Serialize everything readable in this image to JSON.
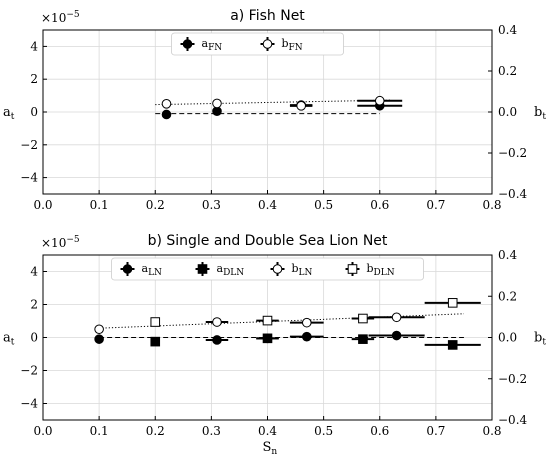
{
  "chart_data": [
    {
      "type": "scatter",
      "title": "a) Fish Net",
      "xlabel": "",
      "ylabel_left": "a",
      "ylabel_left_sub": "t",
      "ylabel_right": "b",
      "ylabel_right_sub": "t",
      "exponent_prefix": "×10",
      "exponent_power": "−5",
      "xlim": [
        0.0,
        0.8
      ],
      "ylim_left": [
        -5,
        5
      ],
      "ylim_right": [
        -0.4,
        0.4
      ],
      "xticks": [
        "0.0",
        "0.1",
        "0.2",
        "0.3",
        "0.4",
        "0.5",
        "0.6",
        "0.7",
        "0.8"
      ],
      "yticks_left": [
        "−4",
        "−2",
        "0",
        "2",
        "4"
      ],
      "yticks_right": [
        "−0.4",
        "−0.2",
        "0.0",
        "0.2",
        "0.4"
      ],
      "grid": true,
      "legend_position": "top-center",
      "legend": [
        {
          "base": "a",
          "sub": "FN",
          "marker": "filled-circle"
        },
        {
          "base": "b",
          "sub": "FN",
          "marker": "open-circle"
        }
      ],
      "series": [
        {
          "name": "aFN",
          "axis": "left",
          "marker": "filled-circle",
          "points": [
            {
              "x": 0.22,
              "y": -0.15,
              "xerr": 0.0,
              "yerr": 0.0
            },
            {
              "x": 0.31,
              "y": 0.05,
              "xerr": 0.0,
              "yerr": 0.0
            },
            {
              "x": 0.46,
              "y": 0.42,
              "xerr": 0.02,
              "yerr": 0.1
            },
            {
              "x": 0.6,
              "y": 0.38,
              "xerr": 0.04,
              "yerr": 0.1
            }
          ],
          "fit": {
            "x": [
              0.2,
              0.6
            ],
            "y": [
              -0.1,
              -0.1
            ],
            "style": "dashed"
          }
        },
        {
          "name": "bFN",
          "axis": "right",
          "marker": "open-circle",
          "points": [
            {
              "x": 0.22,
              "y": 0.04,
              "xerr": 0.0,
              "yerr": 0.0
            },
            {
              "x": 0.31,
              "y": 0.042,
              "xerr": 0.0,
              "yerr": 0.0
            },
            {
              "x": 0.46,
              "y": 0.03,
              "xerr": 0.02,
              "yerr": 0.004
            },
            {
              "x": 0.6,
              "y": 0.055,
              "xerr": 0.04,
              "yerr": 0.004
            }
          ],
          "fit": {
            "x": [
              0.2,
              0.62
            ],
            "y": [
              0.036,
              0.058
            ],
            "style": "dotted"
          }
        }
      ]
    },
    {
      "type": "scatter",
      "title": "b) Single and Double Sea Lion Net",
      "xlabel": "S",
      "xlabel_sub": "n",
      "ylabel_left": "a",
      "ylabel_left_sub": "t",
      "ylabel_right": "b",
      "ylabel_right_sub": "t",
      "exponent_prefix": "×10",
      "exponent_power": "−5",
      "xlim": [
        0.0,
        0.8
      ],
      "ylim_left": [
        -5,
        5
      ],
      "ylim_right": [
        -0.4,
        0.4
      ],
      "xticks": [
        "0.0",
        "0.1",
        "0.2",
        "0.3",
        "0.4",
        "0.5",
        "0.6",
        "0.7",
        "0.8"
      ],
      "yticks_left": [
        "−4",
        "−2",
        "0",
        "2",
        "4"
      ],
      "yticks_right": [
        "−0.4",
        "−0.2",
        "0.0",
        "0.2",
        "0.4"
      ],
      "grid": true,
      "legend_position": "top-center",
      "legend": [
        {
          "base": "a",
          "sub": "LN",
          "marker": "filled-circle"
        },
        {
          "base": "a",
          "sub": "DLN",
          "marker": "filled-square"
        },
        {
          "base": "b",
          "sub": "LN",
          "marker": "open-circle"
        },
        {
          "base": "b",
          "sub": "DLN",
          "marker": "open-square"
        }
      ],
      "series": [
        {
          "name": "aLN",
          "axis": "left",
          "marker": "filled-circle",
          "points": [
            {
              "x": 0.1,
              "y": -0.1,
              "xerr": 0.0,
              "yerr": 0.0
            },
            {
              "x": 0.31,
              "y": -0.15,
              "xerr": 0.02,
              "yerr": 0.0
            },
            {
              "x": 0.4,
              "y": -0.05,
              "xerr": 0.02,
              "yerr": 0.0
            },
            {
              "x": 0.47,
              "y": 0.05,
              "xerr": 0.03,
              "yerr": 0.0
            },
            {
              "x": 0.63,
              "y": 0.12,
              "xerr": 0.05,
              "yerr": 0.0
            }
          ],
          "fit": {
            "x": [
              0.1,
              0.75
            ],
            "y": [
              0.0,
              0.0
            ],
            "style": "dashed"
          }
        },
        {
          "name": "aDLN",
          "axis": "left",
          "marker": "filled-square",
          "points": [
            {
              "x": 0.2,
              "y": -0.25,
              "xerr": 0.0,
              "yerr": 0.0
            },
            {
              "x": 0.4,
              "y": -0.05,
              "xerr": 0.02,
              "yerr": 0.0
            },
            {
              "x": 0.57,
              "y": -0.1,
              "xerr": 0.02,
              "yerr": 0.0
            },
            {
              "x": 0.73,
              "y": -0.45,
              "xerr": 0.05,
              "yerr": 0.1
            }
          ]
        },
        {
          "name": "bLN",
          "axis": "right",
          "marker": "open-circle",
          "points": [
            {
              "x": 0.1,
              "y": 0.04,
              "xerr": 0.0,
              "yerr": 0.0
            },
            {
              "x": 0.31,
              "y": 0.075,
              "xerr": 0.02,
              "yerr": 0.0
            },
            {
              "x": 0.47,
              "y": 0.072,
              "xerr": 0.03,
              "yerr": 0.0
            },
            {
              "x": 0.63,
              "y": 0.098,
              "xerr": 0.05,
              "yerr": 0.0
            }
          ],
          "fit": {
            "x": [
              0.1,
              0.75
            ],
            "y": [
              0.045,
              0.115
            ],
            "style": "dotted"
          }
        },
        {
          "name": "bDLN",
          "axis": "right",
          "marker": "open-square",
          "points": [
            {
              "x": 0.2,
              "y": 0.075,
              "xerr": 0.0,
              "yerr": 0.0
            },
            {
              "x": 0.4,
              "y": 0.082,
              "xerr": 0.02,
              "yerr": 0.0
            },
            {
              "x": 0.57,
              "y": 0.092,
              "xerr": 0.02,
              "yerr": 0.0
            },
            {
              "x": 0.73,
              "y": 0.168,
              "xerr": 0.05,
              "yerr": 0.0
            }
          ]
        }
      ]
    }
  ]
}
